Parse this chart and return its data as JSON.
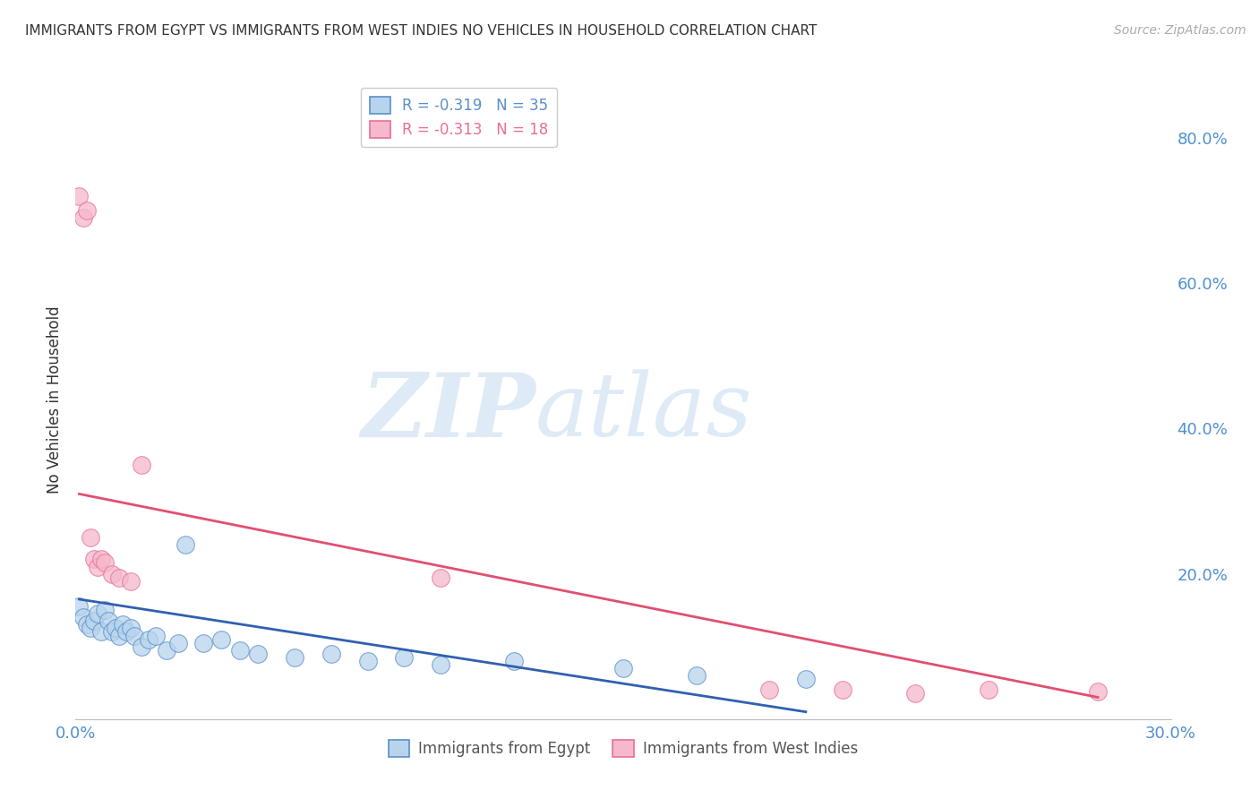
{
  "title": "IMMIGRANTS FROM EGYPT VS IMMIGRANTS FROM WEST INDIES NO VEHICLES IN HOUSEHOLD CORRELATION CHART",
  "source": "Source: ZipAtlas.com",
  "ylabel": "No Vehicles in Household",
  "ytick_vals": [
    0.2,
    0.4,
    0.6,
    0.8
  ],
  "ytick_labels": [
    "20.0%",
    "40.0%",
    "60.0%",
    "80.0%"
  ],
  "xlim": [
    0.0,
    0.3
  ],
  "ylim": [
    0.0,
    0.88
  ],
  "egypt_x": [
    0.001,
    0.002,
    0.003,
    0.004,
    0.005,
    0.006,
    0.007,
    0.008,
    0.009,
    0.01,
    0.011,
    0.012,
    0.013,
    0.014,
    0.015,
    0.016,
    0.018,
    0.02,
    0.022,
    0.025,
    0.028,
    0.03,
    0.035,
    0.04,
    0.045,
    0.05,
    0.06,
    0.07,
    0.08,
    0.09,
    0.1,
    0.12,
    0.15,
    0.17,
    0.2
  ],
  "egypt_y": [
    0.155,
    0.14,
    0.13,
    0.125,
    0.135,
    0.145,
    0.12,
    0.15,
    0.135,
    0.12,
    0.125,
    0.115,
    0.13,
    0.12,
    0.125,
    0.115,
    0.1,
    0.11,
    0.115,
    0.095,
    0.105,
    0.24,
    0.105,
    0.11,
    0.095,
    0.09,
    0.085,
    0.09,
    0.08,
    0.085,
    0.075,
    0.08,
    0.07,
    0.06,
    0.055
  ],
  "westindies_x": [
    0.001,
    0.002,
    0.003,
    0.004,
    0.005,
    0.006,
    0.007,
    0.008,
    0.01,
    0.012,
    0.015,
    0.018,
    0.1,
    0.19,
    0.21,
    0.23,
    0.25,
    0.28
  ],
  "westindies_y": [
    0.72,
    0.69,
    0.7,
    0.25,
    0.22,
    0.21,
    0.22,
    0.215,
    0.2,
    0.195,
    0.19,
    0.35,
    0.195,
    0.04,
    0.04,
    0.035,
    0.04,
    0.038
  ],
  "egypt_color": "#b8d4ed",
  "westindies_color": "#f5b8cc",
  "egypt_edge_color": "#5b8fc9",
  "westindies_edge_color": "#e87090",
  "egypt_line_color": "#3060b0",
  "westindies_line_color": "#e05070",
  "egypt_line_x": [
    0.001,
    0.2
  ],
  "egypt_line_y": [
    0.165,
    0.01
  ],
  "westindies_line_x": [
    0.001,
    0.28
  ],
  "westindies_line_y": [
    0.31,
    0.03
  ],
  "legend_egypt_R": "-0.319",
  "legend_egypt_N": "35",
  "legend_westindies_R": "-0.313",
  "legend_westindies_N": "18",
  "watermark_zip": "ZIP",
  "watermark_atlas": "atlas",
  "background_color": "#ffffff",
  "grid_color": "#cccccc"
}
